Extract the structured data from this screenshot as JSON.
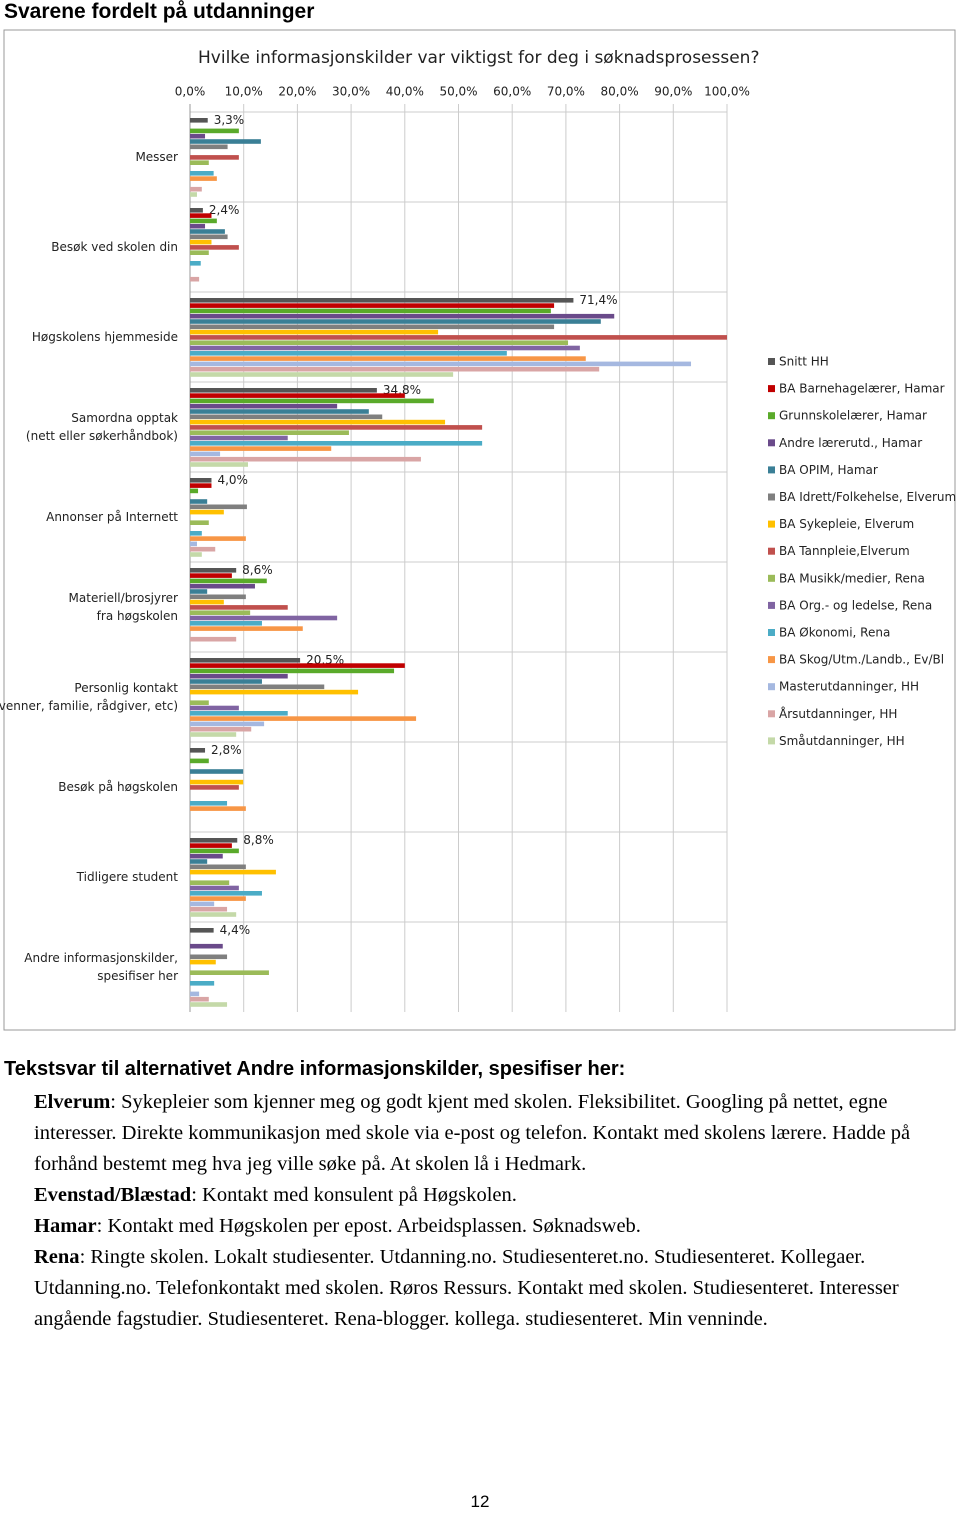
{
  "header": {
    "title": "Svarene fordelt på utdanninger"
  },
  "chart_data": {
    "type": "hbar",
    "title": "Hvilke informasjonskilder var viktigst for deg i søknadsprosessen?",
    "categories": [
      "Messer",
      "Besøk ved skolen din",
      "Høgskolens hjemmeside",
      "Samordna opptak\n(nett eller søkerhåndbok)",
      "Annonser på Internett",
      "Materiell/brosjyrer\nfra høgskolen",
      "Personlig kontakt\n(venner, familie, rådgiver, etc)",
      "Besøk på høgskolen",
      "Tidligere student",
      "Andre informasjonskilder,\nspesifiser her"
    ],
    "xlim": [
      0,
      100
    ],
    "xticks": [
      {
        "value": 0,
        "label": "0,0%"
      },
      {
        "value": 10,
        "label": "10,0%"
      },
      {
        "value": 20,
        "label": "20,0%"
      },
      {
        "value": 30,
        "label": "30,0%"
      },
      {
        "value": 40,
        "label": "40,0%"
      },
      {
        "value": 50,
        "label": "50,0%"
      },
      {
        "value": 60,
        "label": "60,0%"
      },
      {
        "value": 70,
        "label": "70,0%"
      },
      {
        "value": 80,
        "label": "80,0%"
      },
      {
        "value": 90,
        "label": "90,0%"
      },
      {
        "value": 100,
        "label": "100,0%"
      }
    ],
    "grid": true,
    "legend": "right",
    "series": [
      {
        "name": "Snitt HH",
        "color": "#555555",
        "values": [
          3.3,
          2.4,
          71.4,
          34.8,
          4.0,
          8.6,
          20.5,
          2.8,
          8.8,
          4.4
        ],
        "value_labels": [
          "3,3%",
          "2,4%",
          "71,4%",
          "34,8%",
          "4,0%",
          "8,6%",
          "20,5%",
          "2,8%",
          "8,8%",
          "4,4%"
        ]
      },
      {
        "name": "BA Barnehagelærer, Hamar",
        "color": "#c00000",
        "values": [
          0,
          4.0,
          67.8,
          40,
          4,
          7.8,
          40,
          0,
          7.8,
          0
        ]
      },
      {
        "name": "Grunnskolelærer, Hamar",
        "color": "#5aaa2a",
        "values": [
          9.1,
          5.0,
          67.2,
          45.4,
          1.5,
          14.3,
          38,
          3.5,
          9.1,
          0
        ]
      },
      {
        "name": "Andre lærerutd., Hamar",
        "color": "#6a4a8a",
        "values": [
          2.8,
          2.8,
          79,
          27.4,
          0,
          12.1,
          18.2,
          0,
          6.1,
          6.1
        ]
      },
      {
        "name": "BA OPIM, Hamar",
        "color": "#3a7f96",
        "values": [
          13.2,
          6.5,
          76.5,
          33.3,
          3.2,
          3.2,
          13.4,
          9.9,
          3.2,
          0
        ]
      },
      {
        "name": "BA Idrett/Folkehelse, Elverum",
        "color": "#7f7f7f",
        "values": [
          7.0,
          7.0,
          67.8,
          35.8,
          10.6,
          10.4,
          25,
          0,
          10.4,
          6.9
        ]
      },
      {
        "name": "BA Sykepleie, Elverum",
        "color": "#ffc000",
        "values": [
          0,
          4.0,
          46.2,
          47.5,
          6.3,
          6.3,
          31.3,
          9.9,
          16,
          4.8
        ]
      },
      {
        "name": "BA Tannpleie,Elverum",
        "color": "#c0504d",
        "values": [
          9.1,
          9.1,
          100,
          54.4,
          0,
          18.2,
          0,
          9.1,
          0,
          0
        ]
      },
      {
        "name": "BA Musikk/medier, Rena",
        "color": "#9bbb59",
        "values": [
          3.5,
          3.5,
          70.4,
          29.6,
          3.5,
          11.2,
          3.5,
          0,
          7.3,
          14.7
        ]
      },
      {
        "name": "BA Org.- og ledelse, Rena",
        "color": "#8064a2",
        "values": [
          0,
          0,
          72.6,
          18.2,
          0,
          27.4,
          9.1,
          0,
          9.1,
          0
        ]
      },
      {
        "name": "BA Økonomi, Rena",
        "color": "#4bacc6",
        "values": [
          4.4,
          2.0,
          59,
          54.4,
          2.2,
          13.4,
          18.2,
          6.9,
          13.4,
          4.5
        ]
      },
      {
        "name": "BA Skog/Utm./Landb., Ev/Bl",
        "color": "#f79646",
        "values": [
          5.0,
          0,
          73.7,
          26.3,
          10.4,
          21,
          42.1,
          10.4,
          10.4,
          0
        ]
      },
      {
        "name": "Masterutdanninger, HH",
        "color": "#a5b8e0",
        "values": [
          0,
          0,
          93.3,
          5.6,
          1.3,
          0,
          13.8,
          0,
          4.5,
          1.7
        ]
      },
      {
        "name": "Årsutdanninger, HH",
        "color": "#d9a5a5",
        "values": [
          2.2,
          1.7,
          76.2,
          43,
          4.7,
          8.6,
          11.4,
          0,
          6.9,
          3.5
        ]
      },
      {
        "name": "Småutdanninger, HH",
        "color": "#c4d9a8",
        "values": [
          1.3,
          0,
          49,
          10.8,
          2.2,
          0,
          8.6,
          0,
          8.6,
          6.9
        ]
      }
    ]
  },
  "text": {
    "heading": "Tekstsvar til alternativet Andre informasjonskilder, spesifiser her:",
    "paragraphs": [
      {
        "place": "Elverum",
        "text": ": Sykepleier som kjenner meg og godt kjent med skolen. Fleksibilitet. Googling på nettet, egne interesser. Direkte kommunikasjon med skole via e-post og telefon. Kontakt med skolens lærere. Hadde på forhånd bestemt meg hva jeg ville søke på. At skolen lå i Hedmark."
      },
      {
        "place": "Evenstad/Blæstad",
        "text": ": Kontakt med konsulent på Høgskolen."
      },
      {
        "place": "Hamar",
        "text": ": Kontakt med Høgskolen per epost. Arbeidsplassen. Søknadsweb."
      },
      {
        "place": "Rena",
        "text": ": Ringte skolen. Lokalt studiesenter. Utdanning.no. Studiesenteret.no. Studiesenteret. Kollegaer. Utdanning.no. Telefonkontakt med skolen. Røros Ressurs. Kontakt med skolen. Studiesenteret. Interesser angående fagstudier. Studiesenteret. Rena-blogger. kollega. studiesenteret. Min venninde."
      }
    ]
  },
  "footer": {
    "page": "12"
  }
}
